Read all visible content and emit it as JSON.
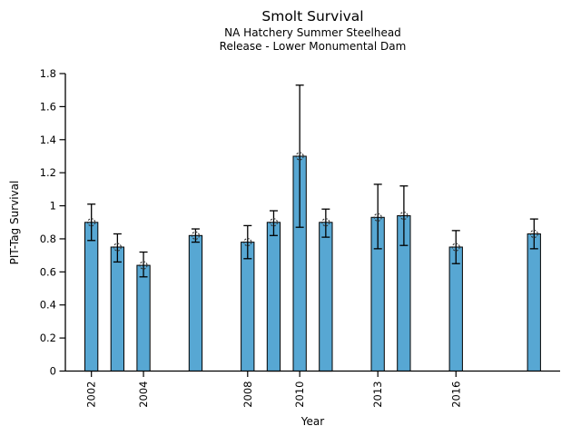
{
  "figure": {
    "background": "#ffffff"
  },
  "chart_data": {
    "type": "bar",
    "title": "Smolt Survival",
    "subtitle_line1": "NA Hatchery Summer Steelhead",
    "subtitle_line2": "Release - Lower Monumental Dam",
    "xlabel": "Year",
    "ylabel": "PIT-Tag Survival",
    "x": [
      2002,
      2003,
      2004,
      2006,
      2008,
      2009,
      2010,
      2011,
      2013,
      2014,
      2016,
      2019
    ],
    "values": [
      0.9,
      0.75,
      0.64,
      0.82,
      0.78,
      0.9,
      1.3,
      0.9,
      0.93,
      0.94,
      0.75,
      0.83
    ],
    "error_low": [
      0.79,
      0.66,
      0.57,
      0.78,
      0.68,
      0.82,
      0.87,
      0.81,
      0.74,
      0.76,
      0.65,
      0.74
    ],
    "error_high": [
      1.01,
      0.83,
      0.72,
      0.86,
      0.88,
      0.97,
      1.73,
      0.98,
      1.13,
      1.12,
      0.85,
      0.92
    ],
    "xticks": [
      2002,
      2004,
      2008,
      2010,
      2013,
      2016
    ],
    "yticks": [
      0,
      0.2,
      0.4,
      0.6,
      0.8,
      1,
      1.2,
      1.4,
      1.6,
      1.8
    ],
    "xlim": [
      2001,
      2020
    ],
    "ylim": [
      0,
      1.8
    ],
    "bar_width_years": 0.5,
    "grid": false,
    "legend": null,
    "xtick_rotation": 90,
    "marker": "open-circle",
    "colors": {
      "bar_fill": "#57a7d3",
      "bar_edge": "#000000",
      "error_bar": "#000000",
      "marker_edge": "#333333",
      "axis": "#000000",
      "text": "#000000"
    }
  }
}
